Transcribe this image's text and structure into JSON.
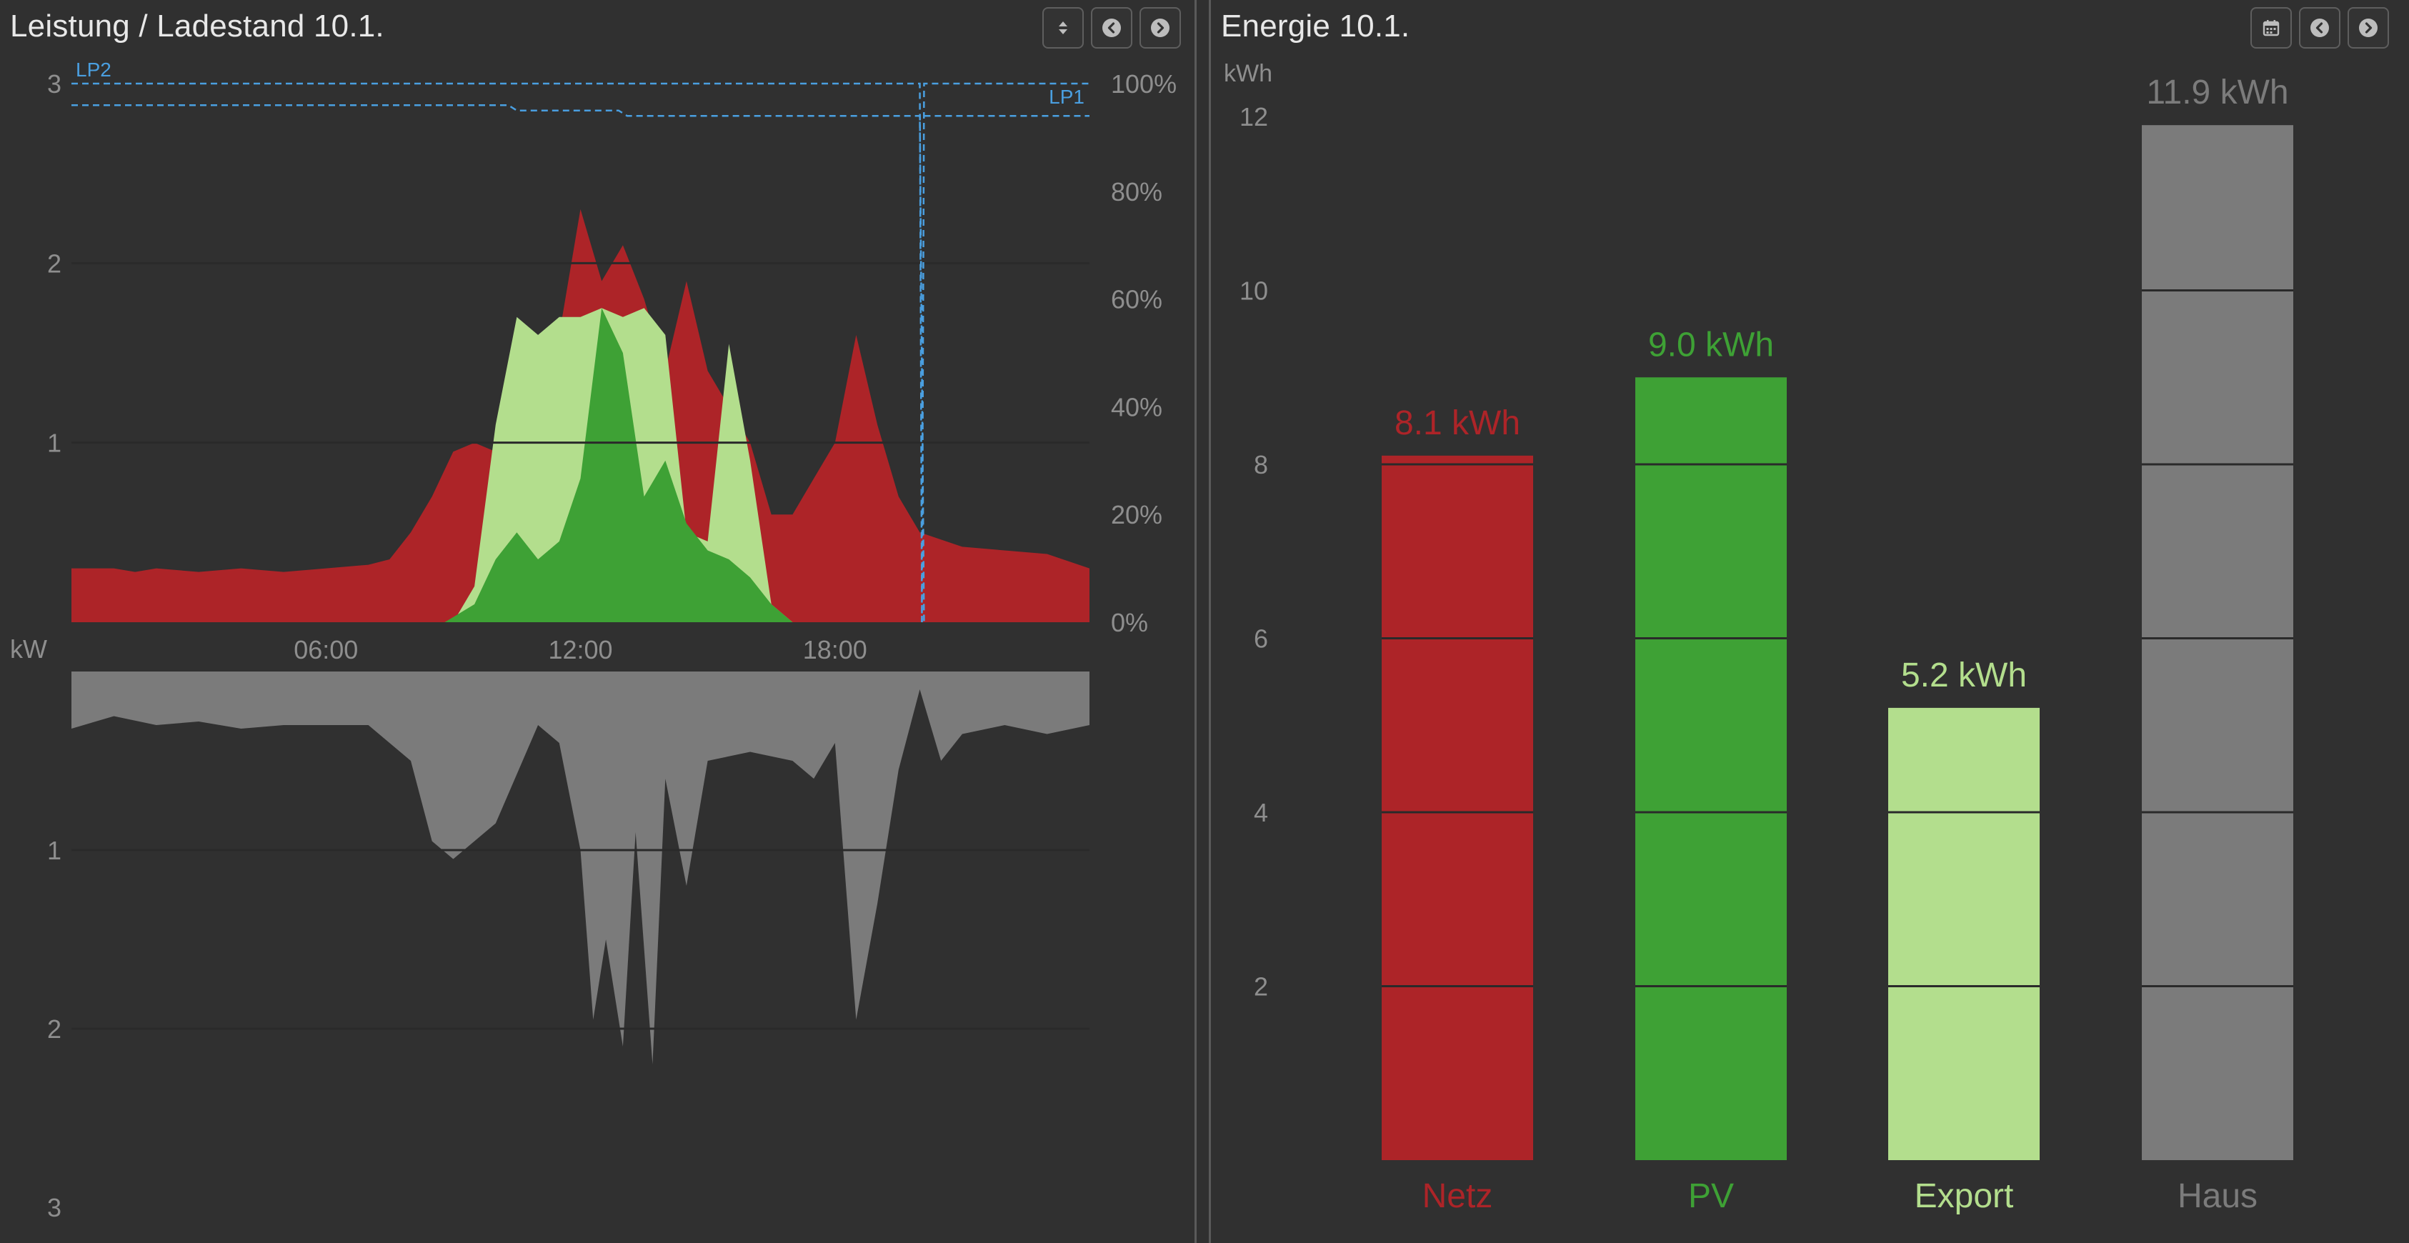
{
  "colors": {
    "grid": "#2a2a2a",
    "import": "#ad2428",
    "pv": "#3ea135",
    "export": "#b3de8d",
    "house": "#7b7b7b",
    "loadpoint": "#4a9fe0"
  },
  "left": {
    "title": "Leistung / Ladestand 10.1.",
    "toolbar": [
      {
        "icon": "sort-icon"
      },
      {
        "icon": "chevron-left-icon"
      },
      {
        "icon": "chevron-right-icon"
      }
    ]
  },
  "right": {
    "title": "Energie 10.1.",
    "toolbar": [
      {
        "icon": "calendar-icon"
      },
      {
        "icon": "chevron-left-icon"
      },
      {
        "icon": "chevron-right-icon"
      }
    ]
  },
  "chart_data": [
    {
      "type": "area",
      "title": "Leistung / Ladestand 10.1.",
      "ylabel": "kW",
      "y_ticks_top": [
        "3",
        "2",
        "1"
      ],
      "y_ticks_bottom": [
        "1",
        "2",
        "3"
      ],
      "y_right_ticks": [
        "100%",
        "80%",
        "60%",
        "40%",
        "20%",
        "0%"
      ],
      "x_ticks": [
        "06:00",
        "12:00",
        "18:00"
      ],
      "xlim_hours": [
        0,
        24
      ],
      "ylim_top": [
        0,
        3
      ],
      "ylim_bottom": [
        0,
        3
      ],
      "y_right_lim": [
        0,
        100
      ],
      "series": [
        {
          "key": "import",
          "values": [
            [
              0,
              0.3
            ],
            [
              1,
              0.3
            ],
            [
              1.5,
              0.28
            ],
            [
              2,
              0.3
            ],
            [
              3,
              0.28
            ],
            [
              4,
              0.3
            ],
            [
              5,
              0.28
            ],
            [
              6,
              0.3
            ],
            [
              7,
              0.32
            ],
            [
              7.5,
              0.35
            ],
            [
              8,
              0.5
            ],
            [
              8.5,
              0.7
            ],
            [
              9,
              0.95
            ],
            [
              9.5,
              1.0
            ],
            [
              10,
              0.95
            ],
            [
              11,
              1.0
            ],
            [
              11.5,
              1.6
            ],
            [
              12,
              2.3
            ],
            [
              12.5,
              1.9
            ],
            [
              13,
              2.1
            ],
            [
              13.5,
              1.8
            ],
            [
              14,
              1.4
            ],
            [
              14.5,
              1.9
            ],
            [
              15,
              1.4
            ],
            [
              15.5,
              1.2
            ],
            [
              16,
              1.0
            ],
            [
              16.5,
              0.6
            ],
            [
              17,
              0.6
            ],
            [
              17.5,
              0.8
            ],
            [
              18,
              1.0
            ],
            [
              18.5,
              1.6
            ],
            [
              19,
              1.1
            ],
            [
              19.5,
              0.7
            ],
            [
              20,
              0.5
            ],
            [
              21,
              0.42
            ],
            [
              22,
              0.4
            ],
            [
              23,
              0.38
            ],
            [
              24,
              0.3
            ]
          ]
        },
        {
          "key": "pv",
          "values": [
            [
              8.8,
              0
            ],
            [
              9.5,
              0.1
            ],
            [
              10,
              0.35
            ],
            [
              10.5,
              0.5
            ],
            [
              11,
              0.35
            ],
            [
              11.5,
              0.45
            ],
            [
              12,
              0.8
            ],
            [
              12.5,
              1.75
            ],
            [
              13,
              1.5
            ],
            [
              13.5,
              0.7
            ],
            [
              14,
              0.9
            ],
            [
              14.5,
              0.55
            ],
            [
              15,
              0.4
            ],
            [
              15.5,
              0.35
            ],
            [
              16,
              0.25
            ],
            [
              16.5,
              0.1
            ],
            [
              17,
              0
            ]
          ]
        },
        {
          "key": "export",
          "values": [
            [
              9,
              0
            ],
            [
              9.5,
              0.2
            ],
            [
              10,
              1.1
            ],
            [
              10.5,
              1.7
            ],
            [
              11,
              1.6
            ],
            [
              11.5,
              1.7
            ],
            [
              12,
              1.7
            ],
            [
              12.5,
              1.75
            ],
            [
              13,
              1.7
            ],
            [
              13.5,
              1.75
            ],
            [
              14,
              1.6
            ],
            [
              14.5,
              0.5
            ],
            [
              15,
              0.45
            ],
            [
              15.5,
              1.55
            ],
            [
              16,
              0.9
            ],
            [
              16.5,
              0.1
            ],
            [
              17,
              0
            ]
          ]
        },
        {
          "key": "house",
          "values": [
            [
              0,
              0.32
            ],
            [
              1,
              0.25
            ],
            [
              2,
              0.3
            ],
            [
              3,
              0.28
            ],
            [
              4,
              0.32
            ],
            [
              5,
              0.3
            ],
            [
              6,
              0.3
            ],
            [
              7,
              0.3
            ],
            [
              8,
              0.5
            ],
            [
              8.5,
              0.95
            ],
            [
              9,
              1.05
            ],
            [
              9.5,
              0.95
            ],
            [
              10,
              0.85
            ],
            [
              11,
              0.3
            ],
            [
              11.5,
              0.4
            ],
            [
              12,
              1.0
            ],
            [
              12.3,
              1.95
            ],
            [
              12.6,
              1.5
            ],
            [
              13,
              2.1
            ],
            [
              13.3,
              0.9
            ],
            [
              13.7,
              2.2
            ],
            [
              14,
              0.6
            ],
            [
              14.5,
              1.2
            ],
            [
              15,
              0.5
            ],
            [
              16,
              0.45
            ],
            [
              17,
              0.5
            ],
            [
              17.5,
              0.6
            ],
            [
              18,
              0.4
            ],
            [
              18.5,
              1.95
            ],
            [
              19,
              1.3
            ],
            [
              19.5,
              0.55
            ],
            [
              20,
              0.1
            ],
            [
              20.5,
              0.5
            ],
            [
              21,
              0.35
            ],
            [
              22,
              0.3
            ],
            [
              23,
              0.35
            ],
            [
              24,
              0.3
            ]
          ]
        }
      ],
      "loadpoints": [
        {
          "name": "LP2",
          "values": [
            [
              0,
              100
            ],
            [
              20,
              100
            ],
            [
              20.05,
              0
            ]
          ]
        },
        {
          "name": "LP1",
          "values": [
            [
              0,
              96
            ],
            [
              10.3,
              96
            ],
            [
              10.5,
              95
            ],
            [
              12.9,
              95
            ],
            [
              13.1,
              94
            ],
            [
              20,
              94
            ],
            [
              20.1,
              0
            ]
          ]
        }
      ]
    },
    {
      "type": "bar",
      "title": "Energie 10.1.",
      "ylabel": "kWh",
      "ylim": [
        0,
        12
      ],
      "y_ticks": [
        "12",
        "10",
        "8",
        "6",
        "4",
        "2"
      ],
      "categories": [
        "Netz",
        "PV",
        "Export",
        "Haus"
      ],
      "values": [
        8.1,
        9.0,
        5.2,
        11.9
      ],
      "value_labels": [
        "8.1 kWh",
        "9.0 kWh",
        "5.2 kWh",
        "11.9 kWh"
      ]
    }
  ]
}
